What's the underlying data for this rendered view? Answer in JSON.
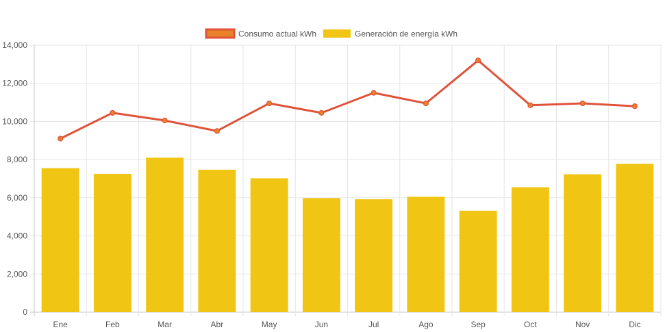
{
  "chart_data": {
    "type": "bar",
    "categories": [
      "Ene",
      "Feb",
      "Mar",
      "Abr",
      "May",
      "Jun",
      "Jul",
      "Ago",
      "Sep",
      "Oct",
      "Nov",
      "Dic"
    ],
    "series": [
      {
        "name": "Consumo actual kWh",
        "type": "line",
        "color": "#e0523a",
        "fill": "#e8832a",
        "values": [
          9100,
          10450,
          10050,
          9500,
          10950,
          10450,
          11500,
          10950,
          13200,
          10850,
          10950,
          10800
        ]
      },
      {
        "name": "Generación de energía kWh",
        "type": "bar",
        "color": "#f0c514",
        "values": [
          7550,
          7250,
          8100,
          7470,
          7020,
          5980,
          5920,
          6050,
          5320,
          6550,
          7230,
          7780
        ]
      }
    ],
    "ylim": [
      0,
      14000
    ],
    "yticks": [
      "0",
      "2,000",
      "4,000",
      "6,000",
      "8,000",
      "10,000",
      "12,000",
      "14,000"
    ],
    "grid": true,
    "legend": "top-center",
    "title": "",
    "xlabel": "",
    "ylabel": ""
  }
}
